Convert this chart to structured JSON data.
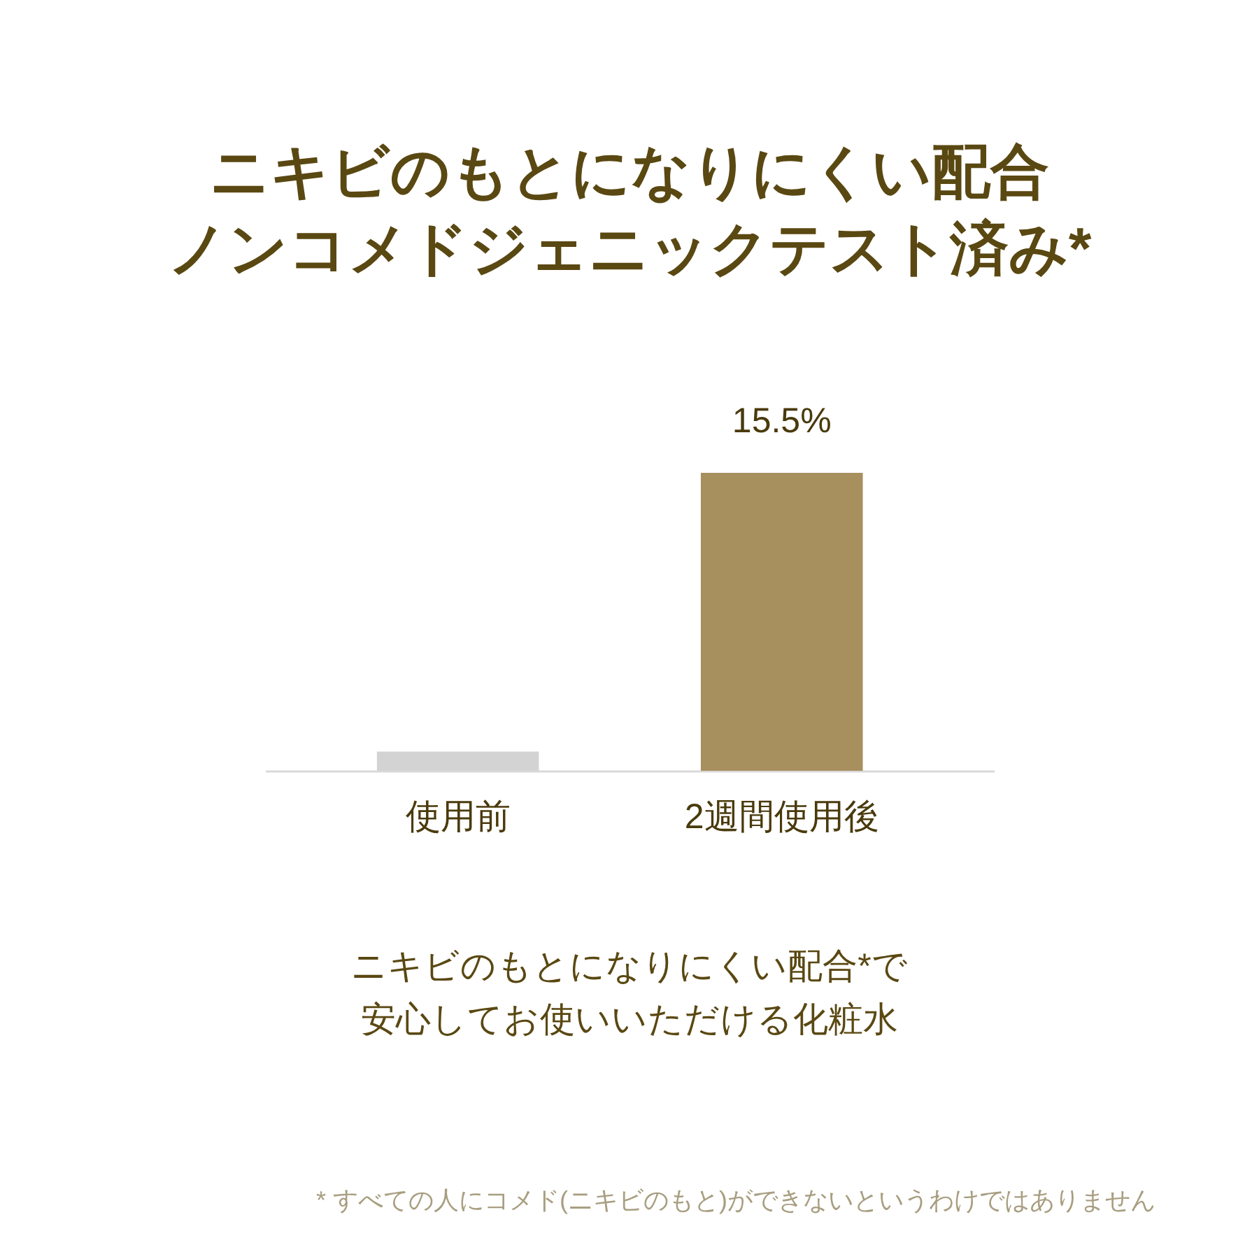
{
  "chart_data": {
    "type": "bar",
    "title": "ニキビのもとになりにくい配合ノンコメドジェニックテスト済み*",
    "categories": [
      "使用前",
      "2週間使用後"
    ],
    "values": [
      1.0,
      15.5
    ],
    "colors": [
      "#d3d3d3",
      "#a88f5e"
    ],
    "value_labels": [
      null,
      "15.5%"
    ],
    "annotations": [
      "ニキビのもとになりにくい配合*で安心してお使いいただける化粧水",
      "* すべての人にコメド(ニキビのもと)ができないというわけではありません"
    ]
  }
}
